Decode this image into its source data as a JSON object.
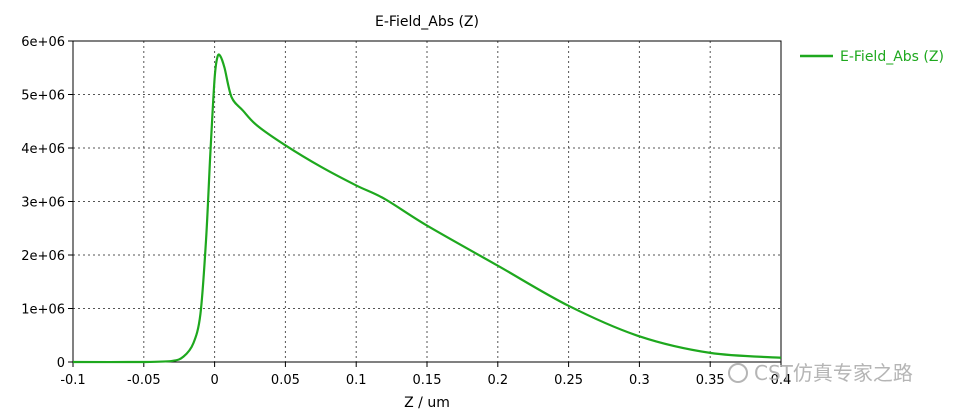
{
  "chart_data": {
    "type": "line",
    "title": "E-Field_Abs (Z)",
    "xlabel": "Z / um",
    "ylabel": "",
    "xlim": [
      -0.1,
      0.4
    ],
    "ylim": [
      0,
      6000000
    ],
    "x_ticks": [
      "-0.1",
      "-0.05",
      "0",
      "0.05",
      "0.1",
      "0.15",
      "0.2",
      "0.25",
      "0.3",
      "0.35",
      "0.4"
    ],
    "y_ticks": [
      "0",
      "1e+06",
      "2e+06",
      "3e+06",
      "4e+06",
      "5e+06",
      "6e+06"
    ],
    "grid": true,
    "legend_position": "right",
    "series": [
      {
        "name": "E-Field_Abs (Z)",
        "color": "#1ea81e",
        "x": [
          -0.1,
          -0.05,
          -0.03,
          -0.022,
          -0.015,
          -0.01,
          -0.006,
          -0.003,
          0.0,
          0.002,
          0.004,
          0.007,
          0.012,
          0.02,
          0.03,
          0.05,
          0.075,
          0.1,
          0.12,
          0.15,
          0.2,
          0.25,
          0.3,
          0.35,
          0.4
        ],
        "values": [
          0,
          0,
          20000,
          100000,
          350000,
          900000,
          2300000,
          3900000,
          5300000,
          5700000,
          5720000,
          5500000,
          4950000,
          4700000,
          4420000,
          4050000,
          3650000,
          3300000,
          3050000,
          2550000,
          1800000,
          1050000,
          480000,
          170000,
          80000
        ]
      }
    ]
  },
  "watermark": "CST仿真专家之路"
}
